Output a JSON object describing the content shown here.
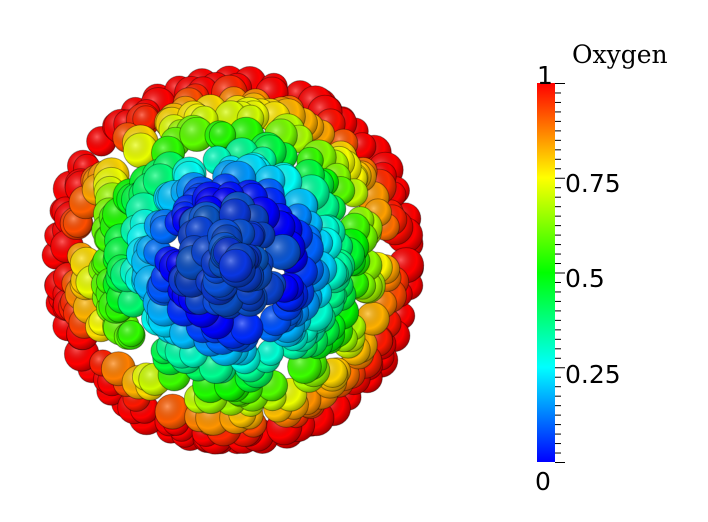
{
  "colorbar": {
    "title": "Oxygen",
    "labels": {
      "max": "1",
      "l075": "0.75",
      "l05": "0.5",
      "l025": "0.25",
      "min": "0"
    },
    "gradient": [
      "#ff0000",
      "#ffff00",
      "#00ff00",
      "#00ffff",
      "#0000ff"
    ]
  },
  "spheroid": {
    "description_colors": {
      "core": "#0a32c8",
      "mid": "#00d0d0",
      "outer": "#00c000",
      "rim": "#e00000"
    }
  }
}
